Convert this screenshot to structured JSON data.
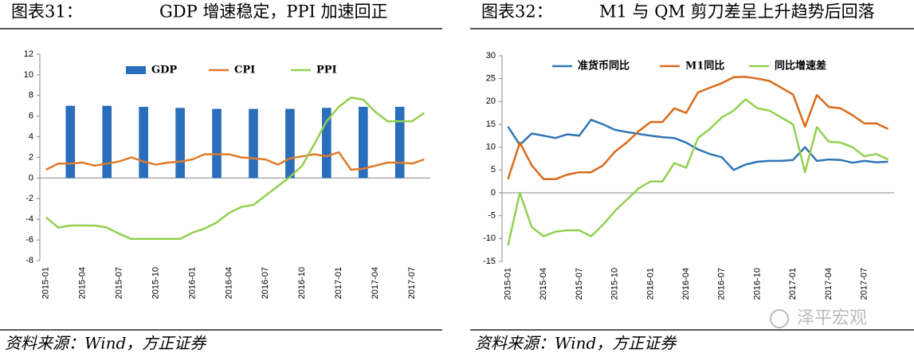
{
  "watermark": "泽平宏观",
  "chart_data": [
    {
      "type": "combo",
      "label": "图表31：",
      "title": "GDP 增速稳定，PPI 加速回正",
      "source": "资料来源：Wind，方正证券",
      "categories": [
        "2015-01",
        null,
        null,
        "2015-04",
        null,
        null,
        "2015-07",
        null,
        null,
        "2015-10",
        null,
        null,
        "2016-01",
        null,
        null,
        "2016-04",
        null,
        null,
        "2016-07",
        null,
        null,
        "2016-10",
        null,
        null,
        "2017-01",
        null,
        null,
        "2017-04",
        null,
        null,
        "2017-07",
        null
      ],
      "series": [
        {
          "name": "GDP",
          "type": "bar",
          "color": "#2a6ebb",
          "values": [
            null,
            null,
            7.0,
            null,
            null,
            7.0,
            null,
            null,
            6.9,
            null,
            null,
            6.8,
            null,
            null,
            6.7,
            null,
            null,
            6.7,
            null,
            null,
            6.7,
            null,
            null,
            6.8,
            null,
            null,
            6.9,
            null,
            null,
            6.9,
            null,
            null
          ]
        },
        {
          "name": "CPI",
          "type": "line",
          "color": "#e07b28",
          "values": [
            0.8,
            1.4,
            1.4,
            1.5,
            1.2,
            1.4,
            1.6,
            2.0,
            1.6,
            1.3,
            1.5,
            1.6,
            1.8,
            2.3,
            2.3,
            2.3,
            2.0,
            1.9,
            1.8,
            1.3,
            1.9,
            2.1,
            2.3,
            2.1,
            2.5,
            0.8,
            0.9,
            1.2,
            1.5,
            1.5,
            1.4,
            1.8
          ]
        },
        {
          "name": "PPI",
          "type": "line",
          "color": "#92d050",
          "values": [
            -3.8,
            -4.8,
            -4.6,
            -4.6,
            -4.6,
            -4.8,
            -5.4,
            -5.9,
            -5.9,
            -5.9,
            -5.9,
            -5.9,
            -5.3,
            -4.9,
            -4.3,
            -3.4,
            -2.8,
            -2.6,
            -1.7,
            -0.8,
            0.1,
            1.2,
            3.3,
            5.5,
            6.9,
            7.8,
            7.6,
            6.4,
            5.5,
            5.5,
            5.5,
            6.3
          ]
        }
      ],
      "ylim": [
        -8,
        12
      ],
      "yticks": [
        -8,
        -6,
        -4,
        -2,
        0,
        2,
        4,
        6,
        8,
        10,
        12
      ]
    },
    {
      "type": "line",
      "label": "图表32：",
      "title": "M1 与 QM 剪刀差呈上升趋势后回落",
      "source": "资料来源：Wind，方正证券",
      "categories": [
        "2015-01",
        null,
        null,
        "2015-04",
        null,
        null,
        "2015-07",
        null,
        null,
        "2015-10",
        null,
        null,
        "2016-01",
        null,
        null,
        "2016-04",
        null,
        null,
        "2016-07",
        null,
        null,
        "2016-10",
        null,
        null,
        "2017-01",
        null,
        null,
        "2017-04",
        null,
        null,
        "2017-07",
        null,
        null
      ],
      "series": [
        {
          "name": "准货币同比",
          "type": "line",
          "color": "#2e75b6",
          "values": [
            14.5,
            10.5,
            13,
            12.5,
            12,
            12.8,
            12.5,
            16,
            15,
            13.8,
            13.3,
            12.9,
            12.5,
            12.2,
            12,
            11,
            9.5,
            8.5,
            7.8,
            5,
            6.2,
            6.8,
            7,
            7,
            7.2,
            10,
            7,
            7.3,
            7.2,
            6.6,
            7,
            6.7,
            6.8
          ]
        },
        {
          "name": "M1同比",
          "type": "line",
          "color": "#d96b1b",
          "values": [
            3,
            11,
            6,
            3,
            3,
            4,
            4.5,
            4.5,
            6,
            9,
            11,
            13.5,
            15.5,
            15.5,
            18.5,
            17.5,
            22,
            23,
            24,
            25.3,
            25.4,
            25,
            24.5,
            23,
            21.5,
            14.5,
            21.4,
            18.8,
            18.5,
            17,
            15.2,
            15.2,
            14
          ]
        },
        {
          "name": "同比增速差",
          "type": "line",
          "color": "#92d050",
          "values": [
            -11.5,
            0,
            -7.5,
            -9.5,
            -8.5,
            -8.2,
            -8.2,
            -9.5,
            -7,
            -4,
            -1.5,
            1,
            2.5,
            2.5,
            6.5,
            5.5,
            12,
            14,
            16.5,
            18,
            20.5,
            18.5,
            18,
            16.5,
            15,
            4.5,
            14.4,
            11.2,
            11,
            10,
            8,
            8.5,
            7.3
          ]
        }
      ],
      "ylim": [
        -15,
        30
      ],
      "yticks": [
        -15,
        -10,
        -5,
        0,
        5,
        10,
        15,
        20,
        25,
        30
      ]
    }
  ]
}
